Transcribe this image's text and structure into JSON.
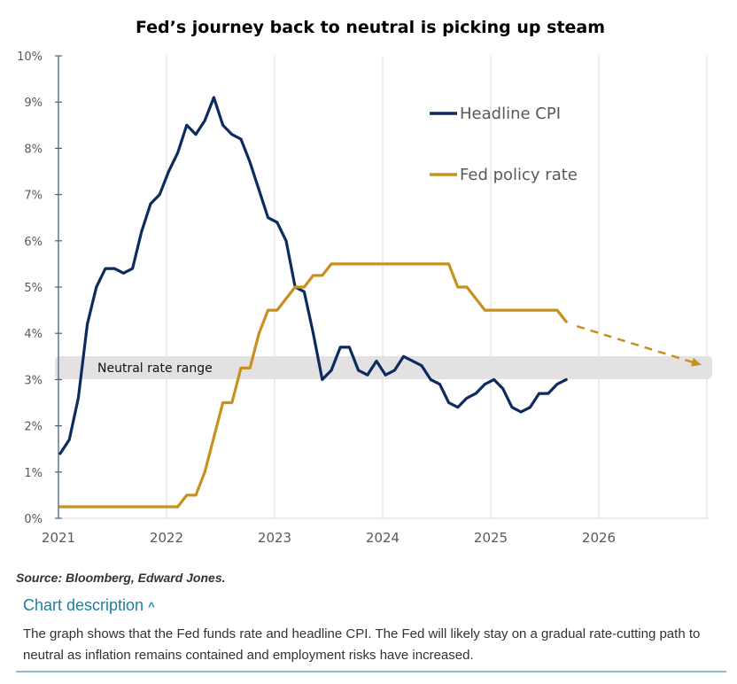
{
  "chart_data": {
    "type": "line",
    "title": "Fed’s journey back to neutral is picking up steam",
    "xlabel": "",
    "ylabel": "",
    "x_ticks": [
      "2021",
      "2022",
      "2023",
      "2024",
      "2025",
      "2026"
    ],
    "y_ticks": [
      "0%",
      "1%",
      "2%",
      "3%",
      "4%",
      "5%",
      "6%",
      "7%",
      "8%",
      "9%",
      "10%"
    ],
    "ylim": [
      0,
      10
    ],
    "xlim": [
      "2021-01",
      "2027-01"
    ],
    "grid": "vertical",
    "legend_position": "top-right",
    "series": [
      {
        "name": "Headline CPI",
        "color": "#0d2b5e",
        "start": "2021-01",
        "frequency": "monthly",
        "values": [
          1.4,
          1.7,
          2.6,
          4.2,
          5.0,
          5.4,
          5.4,
          5.3,
          5.4,
          6.2,
          6.8,
          7.0,
          7.5,
          7.9,
          8.5,
          8.3,
          8.6,
          9.1,
          8.5,
          8.3,
          8.2,
          7.7,
          7.1,
          6.5,
          6.4,
          6.0,
          5.0,
          4.9,
          4.0,
          3.0,
          3.2,
          3.7,
          3.7,
          3.2,
          3.1,
          3.4,
          3.1,
          3.2,
          3.5,
          3.4,
          3.3,
          3.0,
          2.9,
          2.5,
          2.4,
          2.6,
          2.7,
          2.9,
          3.0,
          2.8,
          2.4,
          2.3,
          2.4,
          2.7,
          2.7,
          2.9,
          3.0
        ]
      },
      {
        "name": "Fed policy rate",
        "color": "#c8901e",
        "start": "2021-01",
        "frequency": "monthly",
        "values": [
          0.25,
          0.25,
          0.25,
          0.25,
          0.25,
          0.25,
          0.25,
          0.25,
          0.25,
          0.25,
          0.25,
          0.25,
          0.25,
          0.25,
          0.5,
          0.5,
          1.0,
          1.75,
          2.5,
          2.5,
          3.25,
          3.25,
          4.0,
          4.5,
          4.5,
          4.75,
          5.0,
          5.0,
          5.25,
          5.25,
          5.5,
          5.5,
          5.5,
          5.5,
          5.5,
          5.5,
          5.5,
          5.5,
          5.5,
          5.5,
          5.5,
          5.5,
          5.5,
          5.5,
          5.0,
          5.0,
          4.75,
          4.5,
          4.5,
          4.5,
          4.5,
          4.5,
          4.5,
          4.5,
          4.5,
          4.5,
          4.25
        ]
      }
    ],
    "projection": {
      "series": "Fed policy rate",
      "from": [
        "2025-09",
        4.25
      ],
      "to": [
        "2026-12",
        3.35
      ],
      "style": "dashed-arrow"
    },
    "band": {
      "label": "Neutral rate range",
      "range": [
        3.0,
        3.5
      ],
      "color": "#e3e1e2"
    }
  },
  "footer": {
    "source": "Source: Bloomberg, Edward Jones.",
    "toggle_label": "Chart description",
    "toggle_icon": "chevron-up-icon",
    "description": "The graph shows that the Fed funds rate and headline CPI. The Fed will likely stay on a gradual rate-cutting path to neutral as inflation remains contained and employment risks have increased."
  }
}
